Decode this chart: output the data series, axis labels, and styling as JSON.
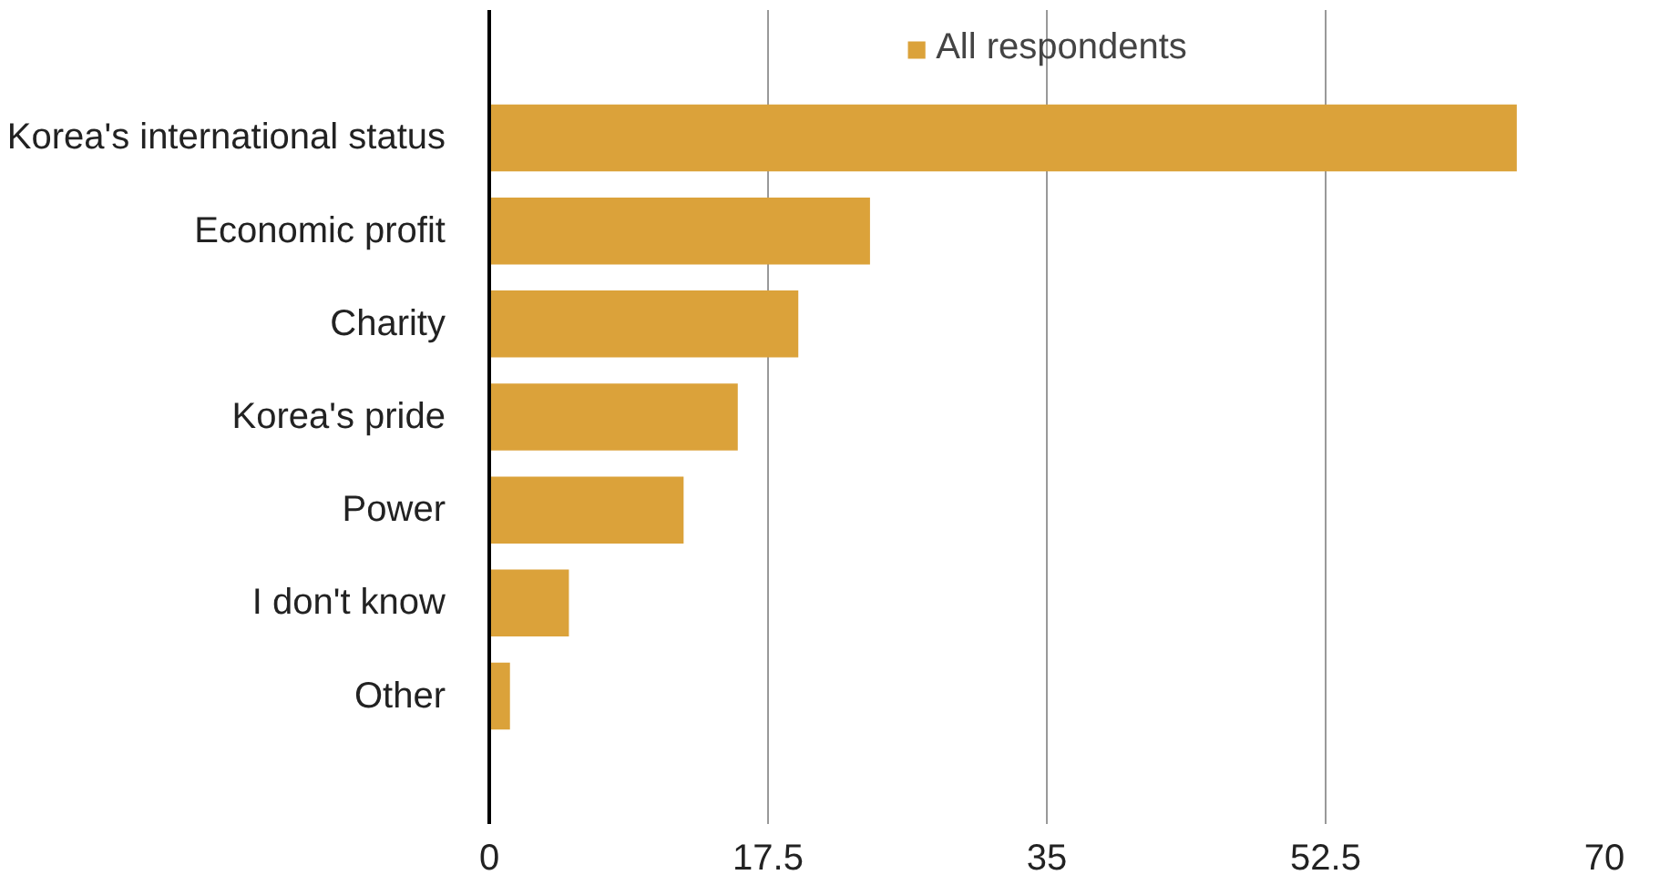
{
  "chart_data": {
    "type": "bar",
    "orientation": "horizontal",
    "categories": [
      "Korea's international status",
      "Economic profit",
      "Charity",
      "Korea's pride",
      "Power",
      "I don't know",
      "Other"
    ],
    "series": [
      {
        "name": "All respondents",
        "color": "#dba23a",
        "values": [
          64.5,
          23.9,
          19.4,
          15.6,
          12.2,
          5.0,
          1.3
        ]
      }
    ],
    "xlim": [
      0,
      70
    ],
    "xticks": [
      0,
      17.5,
      35,
      52.5,
      70
    ],
    "grid": "x",
    "legend": "top"
  }
}
